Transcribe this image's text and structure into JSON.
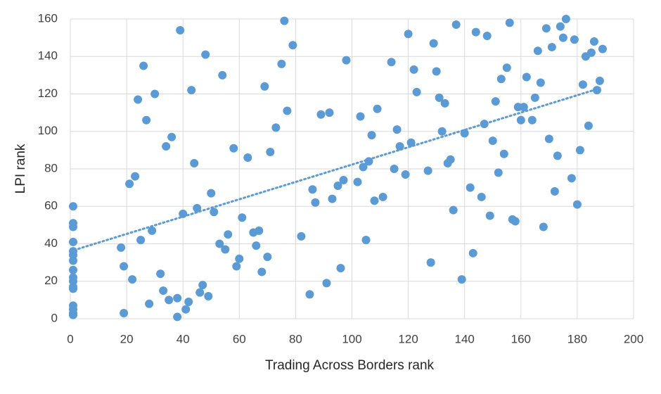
{
  "chart_data": {
    "type": "scatter",
    "x_label": "Trading Across Borders rank",
    "y_label": "LPI rank",
    "color": "#5b9bd5",
    "x": [
      1,
      1,
      1,
      1,
      1,
      1,
      1,
      1,
      1,
      1,
      1,
      1,
      1,
      1,
      1,
      1,
      18,
      19,
      19,
      21,
      22,
      23,
      24,
      25,
      26,
      27,
      28,
      29,
      30,
      32,
      33,
      34,
      35,
      36,
      38,
      38,
      39,
      40,
      41,
      42,
      43,
      44,
      45,
      46,
      47,
      48,
      49,
      50,
      51,
      53,
      54,
      55,
      56,
      58,
      59,
      60,
      61,
      63,
      65,
      66,
      67,
      68,
      69,
      70,
      71,
      73,
      75,
      76,
      77,
      79,
      82,
      85,
      86,
      87,
      89,
      91,
      92,
      93,
      95,
      96,
      97,
      98,
      102,
      103,
      104,
      105,
      106,
      107,
      108,
      109,
      111,
      114,
      115,
      116,
      117,
      119,
      120,
      121,
      122,
      123,
      127,
      128,
      129,
      130,
      131,
      132,
      133,
      134,
      135,
      136,
      137,
      139,
      140,
      142,
      143,
      144,
      146,
      147,
      148,
      149,
      150,
      151,
      152,
      153,
      154,
      155,
      156,
      157,
      158,
      159,
      160,
      161,
      162,
      164,
      165,
      166,
      167,
      168,
      169,
      170,
      171,
      172,
      173,
      174,
      175,
      176,
      178,
      179,
      180,
      181,
      182,
      183,
      184,
      185,
      186,
      187,
      188,
      189
    ],
    "values": [
      60,
      51,
      49,
      41,
      36,
      34,
      31,
      26,
      22,
      20,
      17,
      16,
      7,
      5,
      3,
      2,
      38,
      3,
      28,
      72,
      21,
      76,
      117,
      42,
      135,
      106,
      8,
      47,
      120,
      24,
      15,
      92,
      10,
      97,
      11,
      1,
      154,
      56,
      5,
      9,
      122,
      83,
      59,
      14,
      18,
      141,
      12,
      67,
      57,
      40,
      130,
      37,
      45,
      91,
      28,
      32,
      54,
      86,
      46,
      39,
      47,
      25,
      124,
      33,
      89,
      102,
      136,
      159,
      111,
      146,
      44,
      13,
      69,
      62,
      109,
      19,
      110,
      64,
      71,
      27,
      74,
      138,
      73,
      108,
      81,
      42,
      84,
      98,
      63,
      112,
      65,
      137,
      80,
      101,
      92,
      77,
      152,
      94,
      133,
      121,
      79,
      30,
      147,
      132,
      118,
      100,
      115,
      83,
      85,
      58,
      157,
      21,
      99,
      70,
      35,
      153,
      65,
      104,
      151,
      55,
      95,
      116,
      78,
      128,
      88,
      134,
      158,
      53,
      52,
      113,
      106,
      113,
      129,
      106,
      118,
      143,
      126,
      49,
      155,
      96,
      145,
      68,
      87,
      156,
      150,
      160,
      75,
      149,
      61,
      90,
      125,
      140,
      103,
      142,
      148,
      122,
      127,
      144
    ],
    "trendline": {
      "x": [
        0,
        188
      ],
      "values": [
        36,
        123
      ],
      "style": "dotted"
    },
    "xlim": [
      0,
      200
    ],
    "xticks": [
      0,
      20,
      40,
      60,
      80,
      100,
      120,
      140,
      160,
      180,
      200
    ],
    "ylim": [
      0,
      160
    ],
    "yticks": [
      0,
      20,
      40,
      60,
      80,
      100,
      120,
      140,
      160
    ],
    "grid": true
  }
}
